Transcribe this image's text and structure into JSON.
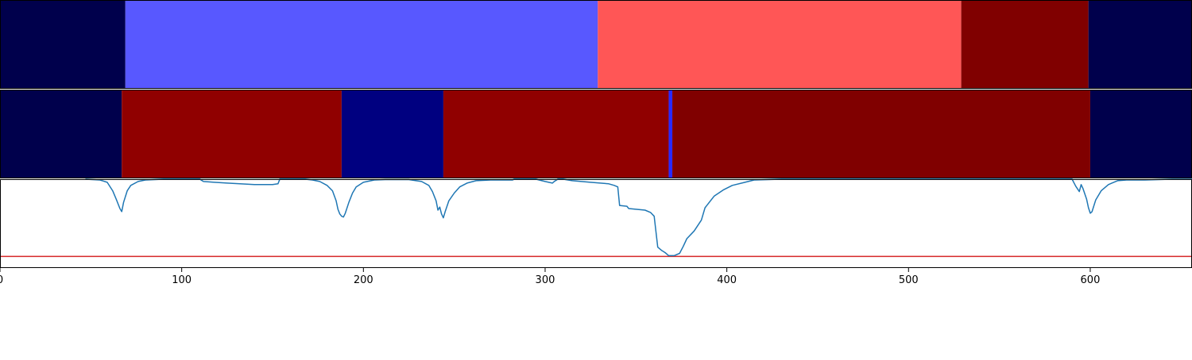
{
  "chart_data": [
    {
      "type": "heatmap",
      "xlim": [
        0,
        656
      ],
      "segments": [
        {
          "start": 0,
          "end": 69,
          "color": "#00004c"
        },
        {
          "start": 69,
          "end": 329,
          "color": "#5858ff"
        },
        {
          "start": 329,
          "end": 529,
          "color": "#ff5656"
        },
        {
          "start": 529,
          "end": 599,
          "color": "#800000"
        },
        {
          "start": 599,
          "end": 656,
          "color": "#00004c"
        }
      ]
    },
    {
      "type": "heatmap",
      "xlim": [
        0,
        656
      ],
      "segments": [
        {
          "start": 0,
          "end": 67,
          "color": "#00004c"
        },
        {
          "start": 67,
          "end": 188,
          "color": "#900000"
        },
        {
          "start": 188,
          "end": 244,
          "color": "#000080"
        },
        {
          "start": 244,
          "end": 368,
          "color": "#900000"
        },
        {
          "start": 368,
          "end": 370,
          "color": "#2a2aff"
        },
        {
          "start": 370,
          "end": 600,
          "color": "#800000"
        },
        {
          "start": 600,
          "end": 656,
          "color": "#00004c"
        }
      ]
    },
    {
      "type": "line",
      "xlim": [
        0,
        656
      ],
      "ylim": [
        -0.15,
        1.0
      ],
      "x_ticks": [
        0,
        100,
        200,
        300,
        400,
        500,
        600
      ],
      "threshold": {
        "value": 0.0,
        "color": "#d62728"
      },
      "series": [
        {
          "color": "#1f77b4",
          "points": [
            [
              47,
              1.0
            ],
            [
              55,
              0.99
            ],
            [
              59,
              0.96
            ],
            [
              62,
              0.85
            ],
            [
              64,
              0.74
            ],
            [
              66,
              0.62
            ],
            [
              67,
              0.58
            ],
            [
              68,
              0.7
            ],
            [
              70,
              0.85
            ],
            [
              72,
              0.92
            ],
            [
              76,
              0.97
            ],
            [
              80,
              0.99
            ],
            [
              90,
              1.0
            ],
            [
              100,
              1.0
            ],
            [
              110,
              1.0
            ],
            [
              112,
              0.97
            ],
            [
              118,
              0.96
            ],
            [
              125,
              0.95
            ],
            [
              132,
              0.94
            ],
            [
              140,
              0.93
            ],
            [
              150,
              0.93
            ],
            [
              153,
              0.94
            ],
            [
              154,
              1.0
            ],
            [
              165,
              1.0
            ],
            [
              168,
              1.0
            ],
            [
              172,
              0.99
            ],
            [
              176,
              0.97
            ],
            [
              180,
              0.92
            ],
            [
              183,
              0.85
            ],
            [
              185,
              0.72
            ],
            [
              186,
              0.61
            ],
            [
              187,
              0.55
            ],
            [
              188,
              0.52
            ],
            [
              189,
              0.51
            ],
            [
              190,
              0.56
            ],
            [
              192,
              0.7
            ],
            [
              194,
              0.82
            ],
            [
              196,
              0.9
            ],
            [
              200,
              0.96
            ],
            [
              206,
              0.99
            ],
            [
              212,
              0.995
            ],
            [
              225,
              0.995
            ],
            [
              232,
              0.97
            ],
            [
              236,
              0.92
            ],
            [
              238,
              0.84
            ],
            [
              240,
              0.72
            ],
            [
              241,
              0.6
            ],
            [
              242,
              0.64
            ],
            [
              243,
              0.55
            ],
            [
              244,
              0.5
            ],
            [
              245,
              0.58
            ],
            [
              247,
              0.72
            ],
            [
              250,
              0.82
            ],
            [
              253,
              0.9
            ],
            [
              257,
              0.95
            ],
            [
              262,
              0.98
            ],
            [
              270,
              0.99
            ],
            [
              282,
              0.99
            ],
            [
              283,
              1.0
            ],
            [
              295,
              1.0
            ],
            [
              300,
              0.97
            ],
            [
              304,
              0.95
            ],
            [
              305,
              0.97
            ],
            [
              307,
              1.0
            ],
            [
              310,
              1.0
            ],
            [
              315,
              0.98
            ],
            [
              325,
              0.96
            ],
            [
              335,
              0.94
            ],
            [
              338,
              0.92
            ],
            [
              340,
              0.9
            ],
            [
              341,
              0.66
            ],
            [
              345,
              0.65
            ],
            [
              346,
              0.62
            ],
            [
              355,
              0.6
            ],
            [
              358,
              0.57
            ],
            [
              360,
              0.52
            ],
            [
              362,
              0.12
            ],
            [
              364,
              0.08
            ],
            [
              366,
              0.05
            ],
            [
              368,
              0.01
            ],
            [
              371,
              0.01
            ],
            [
              374,
              0.04
            ],
            [
              376,
              0.13
            ],
            [
              378,
              0.23
            ],
            [
              382,
              0.33
            ],
            [
              386,
              0.47
            ],
            [
              388,
              0.63
            ],
            [
              393,
              0.78
            ],
            [
              398,
              0.86
            ],
            [
              403,
              0.92
            ],
            [
              410,
              0.96
            ],
            [
              415,
              0.99
            ],
            [
              430,
              1.0
            ],
            [
              460,
              1.0
            ],
            [
              590,
              1.0
            ],
            [
              592,
              0.91
            ],
            [
              594,
              0.84
            ],
            [
              595,
              0.93
            ],
            [
              596,
              0.88
            ],
            [
              598,
              0.74
            ],
            [
              599,
              0.63
            ],
            [
              600,
              0.56
            ],
            [
              601,
              0.58
            ],
            [
              603,
              0.73
            ],
            [
              606,
              0.85
            ],
            [
              610,
              0.93
            ],
            [
              615,
              0.98
            ],
            [
              620,
              0.99
            ],
            [
              630,
              0.99
            ],
            [
              645,
              1.0
            ],
            [
              656,
              1.0
            ]
          ]
        }
      ]
    }
  ]
}
